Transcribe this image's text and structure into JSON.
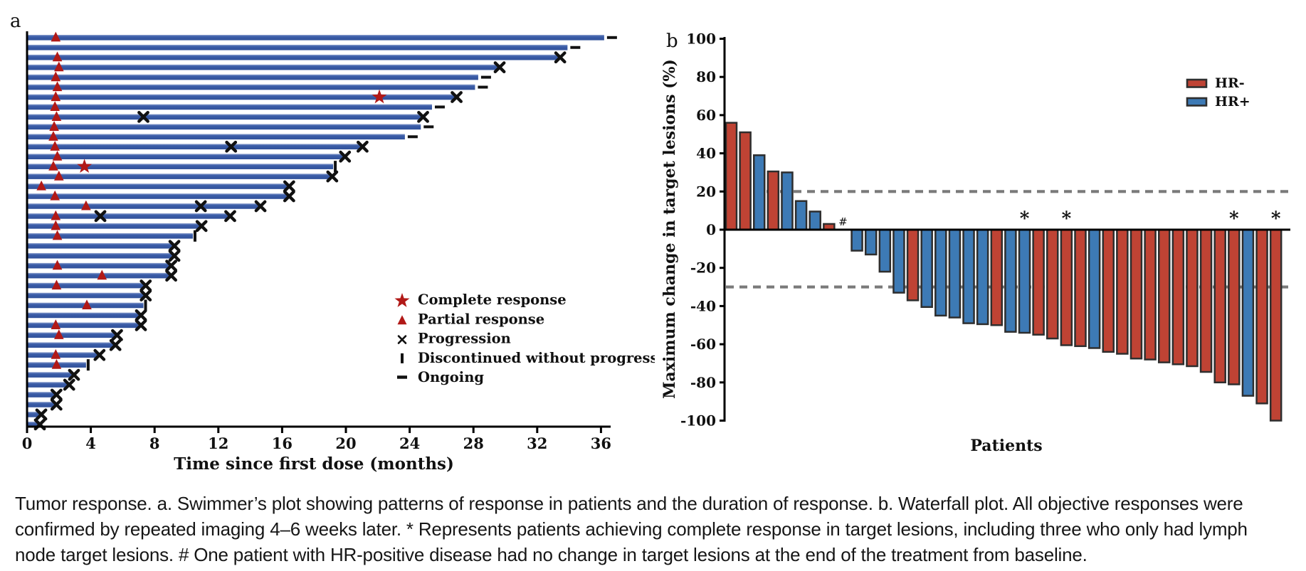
{
  "figure_title": "Tumor response",
  "colors": {
    "swimmer_bar": "#31519a",
    "swimmer_bar_light": "#8fa2cf",
    "marker_red": "#b11917",
    "black": "#111111",
    "hr_neg_red": "#bf4334",
    "hr_pos_blue": "#3d7ab5",
    "bar_border": "#2e2e2e",
    "dash_gray": "#7a7a7a"
  },
  "panel_a": {
    "label": "a",
    "x_axis": {
      "title": "Time since first dose (months)",
      "ticks": [
        0,
        4,
        8,
        12,
        16,
        20,
        24,
        28,
        32,
        36
      ]
    },
    "legend": [
      {
        "marker": "star",
        "label": "Complete response"
      },
      {
        "marker": "triangle",
        "label": "Partial response"
      },
      {
        "marker": "cross",
        "label": "Progression"
      },
      {
        "marker": "vbar",
        "label": "Discontinued without progression"
      },
      {
        "marker": "dash",
        "label": "Ongoing"
      }
    ],
    "rows_note": "each row = [duration_months, end_marker(x=progression,o=ongoing,d=discontinued), partial_response_month, complete_response_month, mid_progression_months[]]",
    "rows": [
      [
        36.2,
        "o",
        1.8,
        null,
        []
      ],
      [
        33.9,
        "o",
        null,
        null,
        []
      ],
      [
        33.4,
        "x",
        1.9,
        null,
        []
      ],
      [
        29.6,
        "x",
        2.0,
        null,
        []
      ],
      [
        28.3,
        "o",
        1.8,
        null,
        []
      ],
      [
        28.1,
        "o",
        1.9,
        null,
        []
      ],
      [
        26.9,
        "x",
        1.8,
        22.1,
        []
      ],
      [
        25.4,
        "o",
        1.75,
        null,
        []
      ],
      [
        24.8,
        "x",
        1.85,
        null,
        [
          7.3
        ]
      ],
      [
        24.7,
        "o",
        1.7,
        null,
        []
      ],
      [
        23.7,
        "o",
        1.65,
        null,
        []
      ],
      [
        21.0,
        "x",
        1.75,
        null,
        [
          12.8
        ]
      ],
      [
        19.9,
        "x",
        1.9,
        null,
        []
      ],
      [
        19.2,
        "d",
        1.65,
        3.6,
        []
      ],
      [
        19.1,
        "x",
        2.0,
        null,
        []
      ],
      [
        16.4,
        "x",
        0.9,
        null,
        []
      ],
      [
        16.4,
        "x",
        1.75,
        null,
        []
      ],
      [
        14.6,
        "x",
        3.7,
        null,
        [
          10.9
        ]
      ],
      [
        12.7,
        "x",
        1.8,
        null,
        [
          4.6
        ]
      ],
      [
        10.9,
        "x",
        1.8,
        null,
        []
      ],
      [
        10.4,
        "d",
        1.9,
        null,
        []
      ],
      [
        9.2,
        "x",
        null,
        null,
        []
      ],
      [
        9.2,
        "x",
        null,
        null,
        []
      ],
      [
        9.0,
        "x",
        1.9,
        null,
        []
      ],
      [
        9.0,
        "x",
        4.7,
        null,
        []
      ],
      [
        7.4,
        "x",
        1.85,
        null,
        []
      ],
      [
        7.4,
        "x",
        null,
        null,
        []
      ],
      [
        7.3,
        "d",
        3.75,
        null,
        []
      ],
      [
        7.1,
        "x",
        null,
        null,
        []
      ],
      [
        7.1,
        "x",
        1.8,
        null,
        []
      ],
      [
        5.6,
        "x",
        2.0,
        null,
        []
      ],
      [
        5.5,
        "x",
        null,
        null,
        []
      ],
      [
        4.5,
        "x",
        1.8,
        null,
        []
      ],
      [
        3.7,
        "d",
        1.85,
        null,
        []
      ],
      [
        2.9,
        "x",
        null,
        null,
        []
      ],
      [
        2.6,
        "x",
        null,
        null,
        []
      ],
      [
        1.8,
        "x",
        null,
        null,
        []
      ],
      [
        1.8,
        "x",
        null,
        null,
        []
      ],
      [
        0.85,
        "x",
        null,
        null,
        []
      ],
      [
        0.76,
        "x",
        null,
        null,
        []
      ]
    ]
  },
  "panel_b": {
    "label": "b",
    "y_axis": {
      "title": "Maximum change in target lesions (%)",
      "ticks": [
        100,
        80,
        60,
        40,
        20,
        0,
        -20,
        -40,
        -60,
        -80,
        -100
      ]
    },
    "x_title": "Patients",
    "reference_lines": [
      20,
      -30
    ],
    "legend": [
      {
        "label": "HR-",
        "group": "HR-"
      },
      {
        "label": "HR+",
        "group": "HR+"
      }
    ],
    "hash_symbol": "#",
    "asterisk_symbol": "*"
  },
  "chart_data": [
    {
      "type": "bar",
      "name": "swimmer_plot",
      "title": "",
      "xlabel": "Time since first dose (months)",
      "xlim": [
        0,
        37
      ],
      "orientation": "horizontal",
      "values_months": [
        36.2,
        33.9,
        33.4,
        29.6,
        28.3,
        28.1,
        26.9,
        25.4,
        24.8,
        24.7,
        23.7,
        21.0,
        19.9,
        19.2,
        19.1,
        16.4,
        16.4,
        14.6,
        12.7,
        10.9,
        10.4,
        9.2,
        9.2,
        9.0,
        9.0,
        7.4,
        7.4,
        7.3,
        7.1,
        7.1,
        5.6,
        5.5,
        4.5,
        3.7,
        2.9,
        2.6,
        1.8,
        1.8,
        0.85,
        0.76
      ],
      "end_status": [
        "ongoing",
        "ongoing",
        "progression",
        "progression",
        "ongoing",
        "ongoing",
        "progression",
        "ongoing",
        "progression",
        "ongoing",
        "ongoing",
        "progression",
        "progression",
        "discontinued",
        "progression",
        "progression",
        "progression",
        "progression",
        "progression",
        "progression",
        "discontinued",
        "progression",
        "progression",
        "progression",
        "progression",
        "progression",
        "progression",
        "discontinued",
        "progression",
        "progression",
        "progression",
        "progression",
        "progression",
        "discontinued",
        "progression",
        "progression",
        "progression",
        "progression",
        "progression",
        "progression"
      ]
    },
    {
      "type": "bar",
      "name": "waterfall_plot",
      "title": "",
      "xlabel": "Patients",
      "ylabel": "Maximum change in target lesions (%)",
      "ylim": [
        -100,
        100
      ],
      "reference_lines": [
        20,
        -30
      ],
      "values": [
        56,
        51,
        39,
        30.5,
        30,
        15,
        9.5,
        3,
        0,
        -11,
        -13,
        -22,
        -33,
        -37,
        -40.5,
        -45,
        -46,
        -49,
        -49.5,
        -50,
        -53.5,
        -54,
        -55,
        -57,
        -60.5,
        -61,
        -62,
        -64,
        -65,
        -67.5,
        -68,
        -69.5,
        -70.5,
        -71.5,
        -74.5,
        -80,
        -81,
        -87,
        -91,
        -100
      ],
      "groups": [
        "HR-",
        "HR-",
        "HR+",
        "HR-",
        "HR+",
        "HR+",
        "HR+",
        "HR-",
        "HR+",
        "HR+",
        "HR+",
        "HR+",
        "HR+",
        "HR-",
        "HR+",
        "HR+",
        "HR+",
        "HR+",
        "HR+",
        "HR-",
        "HR+",
        "HR+",
        "HR-",
        "HR-",
        "HR-",
        "HR-",
        "HR+",
        "HR-",
        "HR-",
        "HR-",
        "HR-",
        "HR-",
        "HR-",
        "HR-",
        "HR-",
        "HR-",
        "HR-",
        "HR+",
        "HR-",
        "HR-"
      ],
      "asterisk_patient_indices": [
        22,
        25,
        37,
        40
      ],
      "hash_patient_index": 9,
      "legend_entries": [
        "HR-",
        "HR+"
      ]
    }
  ],
  "caption": {
    "lines": [
      "Tumor response. a. Swimmer’s plot showing patterns of response in patients and the duration of response. b. Waterfall plot. All objective responses were",
      "confirmed by repeated imaging 4–6 weeks later. * Represents patients achieving complete response in target lesions, including three who only had lymph",
      "node target lesions. # One patient with HR-positive disease had no change in target lesions at the end of the treatment from baseline."
    ]
  }
}
